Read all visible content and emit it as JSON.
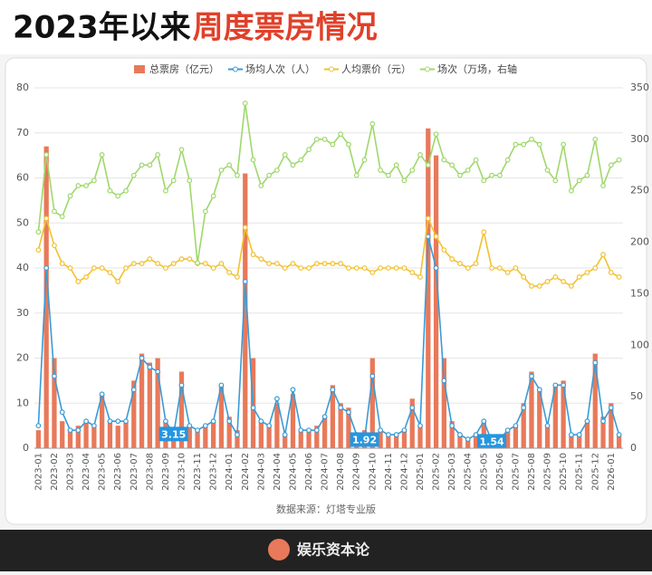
{
  "chart_data": {
    "type": "combo",
    "title_parts": [
      "2023年以来",
      "周度票房情况"
    ],
    "source": "数据来源：灯塔专业版",
    "footer": "娱乐资本论",
    "categories": [
      "2023-01",
      null,
      "2023-02",
      null,
      "2023-03",
      null,
      "2023-04",
      null,
      "2023-05",
      null,
      "2023-06",
      null,
      "2023-07",
      null,
      "2023-08",
      null,
      "2023-09",
      null,
      "2023-10",
      null,
      "2023-11",
      null,
      "2023-12",
      null,
      "2024-01",
      null,
      "2024-02",
      null,
      "2024-03",
      null,
      "2024-04",
      null,
      "2024-05",
      null,
      "2024-06",
      null,
      "2024-07",
      null,
      "2024-08",
      null,
      "2024-09",
      null,
      "2024-10",
      null,
      "2024-11",
      null,
      "2024-12",
      null,
      "2025-01",
      null,
      "2025-02",
      null,
      "2025-03",
      null,
      "2025-04",
      null,
      "2025-05",
      null,
      "2025-06",
      null,
      "2025-07",
      null,
      "2025-08",
      null,
      "2025-09",
      null,
      "2025-10",
      null,
      "2025-11",
      null,
      "2025-12",
      null,
      "2026-01",
      null
    ],
    "series": [
      {
        "name": "总票房（亿元）",
        "kind": "bar",
        "color": "#e8795a",
        "values": [
          4,
          67,
          20,
          6,
          4,
          5,
          6,
          5,
          12,
          6,
          5,
          6,
          15,
          21,
          19,
          20,
          6,
          4,
          17,
          5,
          4,
          5,
          6,
          14,
          7,
          4,
          61,
          20,
          6,
          5,
          10,
          3,
          12,
          4,
          4,
          5,
          7,
          14,
          10,
          9,
          3,
          4,
          20,
          4,
          3,
          3,
          4,
          11,
          5,
          71,
          65,
          20,
          6,
          3,
          2,
          3,
          6,
          2,
          2,
          4,
          5,
          10,
          17,
          13,
          5,
          14,
          15,
          3,
          3,
          6,
          21,
          7,
          10,
          3
        ]
      },
      {
        "name": "场均人次（人）",
        "kind": "line",
        "color": "#3a9bd5",
        "values": [
          5,
          40,
          16,
          8,
          4,
          4,
          6,
          5,
          12,
          6,
          6,
          6,
          13,
          20,
          18,
          17,
          6,
          3.15,
          14,
          5,
          4,
          5,
          6,
          14,
          6,
          3,
          37,
          9,
          6,
          5,
          11,
          3,
          13,
          4,
          4,
          4,
          7,
          13,
          9,
          8,
          3,
          1.92,
          16,
          4,
          3,
          3,
          4,
          9,
          5,
          47,
          40,
          15,
          5,
          3,
          2,
          3,
          6,
          1.54,
          2,
          4,
          5,
          9,
          16,
          13,
          5,
          14,
          14,
          3,
          3,
          6,
          19,
          6,
          9,
          3
        ],
        "value_labels": [
          null,
          null,
          null,
          null,
          null,
          null,
          null,
          null,
          null,
          null,
          null,
          null,
          null,
          null,
          null,
          null,
          null,
          "3.15",
          null,
          null,
          null,
          null,
          null,
          null,
          null,
          null,
          null,
          null,
          null,
          null,
          null,
          null,
          null,
          null,
          null,
          null,
          null,
          null,
          null,
          null,
          null,
          "1.92",
          null,
          null,
          null,
          null,
          null,
          null,
          null,
          null,
          null,
          null,
          null,
          null,
          null,
          null,
          null,
          "1.54",
          null,
          null,
          null,
          null,
          null,
          null,
          null,
          null,
          null,
          null,
          null,
          null,
          null,
          null,
          null,
          null
        ]
      },
      {
        "name": "人均票价（元）",
        "kind": "line",
        "color": "#f2c12e",
        "values": [
          44,
          51,
          45,
          41,
          40,
          37,
          38,
          40,
          40,
          39,
          37,
          40,
          41,
          41,
          42,
          41,
          40,
          41,
          42,
          42,
          41,
          41,
          40,
          41,
          39,
          38,
          49,
          43,
          42,
          41,
          41,
          40,
          41,
          40,
          40,
          41,
          41,
          41,
          41,
          40,
          40,
          40,
          39,
          40,
          40,
          40,
          40,
          39,
          38,
          51,
          47,
          44,
          42,
          41,
          40,
          41,
          48,
          40,
          40,
          39,
          40,
          38,
          36,
          36,
          37,
          38,
          37,
          36,
          38,
          39,
          40,
          43,
          39,
          38
        ]
      },
      {
        "name": "场次（万场，右轴",
        "kind": "line",
        "axis": "y2",
        "color": "#9fd86b",
        "values": [
          210,
          285,
          230,
          225,
          245,
          255,
          255,
          260,
          285,
          250,
          245,
          250,
          265,
          275,
          275,
          285,
          250,
          260,
          290,
          260,
          180,
          230,
          245,
          270,
          275,
          265,
          335,
          280,
          255,
          265,
          270,
          285,
          275,
          280,
          290,
          300,
          300,
          295,
          305,
          295,
          265,
          280,
          315,
          270,
          265,
          275,
          260,
          270,
          285,
          275,
          305,
          280,
          275,
          265,
          270,
          280,
          260,
          265,
          265,
          280,
          295,
          295,
          300,
          295,
          270,
          260,
          295,
          250,
          260,
          265,
          300,
          255,
          275,
          280
        ]
      }
    ],
    "ylim": [
      0,
      80
    ],
    "yticks": [
      0,
      10,
      20,
      30,
      40,
      50,
      60,
      70,
      80
    ],
    "y2lim": [
      0,
      350
    ],
    "y2ticks": [
      0,
      50,
      100,
      150,
      200,
      250,
      300,
      350
    ],
    "grid": true
  }
}
